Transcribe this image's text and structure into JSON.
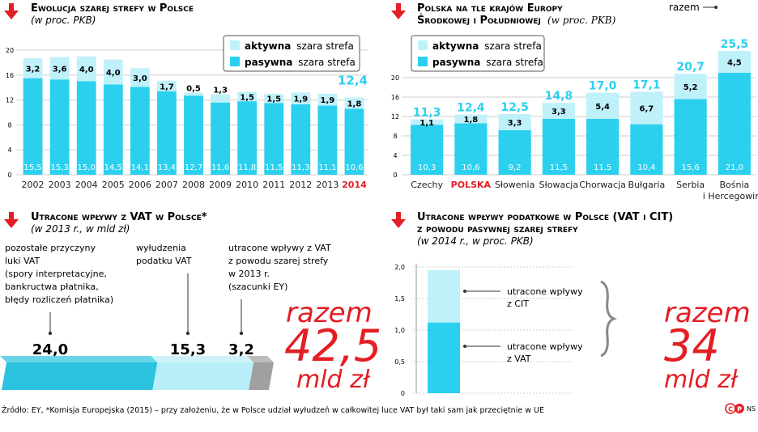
{
  "colors": {
    "aktywna": "#bff1fb",
    "pasywna": "#2bd0ef",
    "accent": "#e31e24",
    "grid": "#cfcfcf",
    "bigbar_dark": "#2bc3df",
    "bigbar_light": "#b8eef7",
    "bigbar_gray": "#a0a0a0"
  },
  "legend": {
    "aktywna_bold": "aktywna",
    "aktywna_rest": "szara strefa",
    "pasywna_bold": "pasywna",
    "pasywna_rest": "szara strefa"
  },
  "chart_data": [
    {
      "type": "bar",
      "title": "Ewolucja szarej strefy w Polsce",
      "subtitle": "(w proc. PKB)",
      "categories": [
        "2002",
        "2003",
        "2004",
        "2005",
        "2006",
        "2007",
        "2008",
        "2009",
        "2010",
        "2011",
        "2012",
        "2013",
        "2014"
      ],
      "highlight_category": "2014",
      "series": [
        {
          "name": "pasywna szara strefa",
          "values": [
            15.5,
            15.3,
            15.0,
            14.5,
            14.1,
            13.4,
            12.7,
            11.6,
            11.8,
            11.5,
            11.3,
            11.1,
            10.6
          ]
        },
        {
          "name": "aktywna szara strefa",
          "values": [
            3.2,
            3.6,
            4.0,
            4.0,
            3.0,
            1.7,
            0.5,
            1.3,
            1.5,
            1.5,
            1.9,
            1.9,
            1.8
          ]
        }
      ],
      "labels_pasywna": [
        "15,5",
        "15,3",
        "15,0",
        "14,5",
        "14,1",
        "13,4",
        "12,7",
        "11,6",
        "11,8",
        "11,5",
        "11,3",
        "11,1",
        "10,6"
      ],
      "labels_aktywna": [
        "3,2",
        "3,6",
        "4,0",
        "4,0",
        "3,0",
        "1,7",
        "0,5",
        "1,3",
        "1,5",
        "1,5",
        "1,9",
        "1,9",
        "1,8"
      ],
      "total_label": "12,4",
      "yticks": [
        0,
        4,
        8,
        12,
        16,
        20
      ],
      "ylim": [
        0,
        20
      ]
    },
    {
      "type": "bar",
      "title_line1": "Polska na tle krajów Europy",
      "title_line2": "Środkowej i Południowej",
      "subtitle": "(w proc. PKB)",
      "categories": [
        "Czechy",
        "POLSKA",
        "Słowenia",
        "Słowacja",
        "Chorwacja",
        "Bułgaria",
        "Serbia",
        "Bośnia i Hercegowina"
      ],
      "category_lines": [
        [
          "Czechy"
        ],
        [
          "POLSKA"
        ],
        [
          "Słowenia"
        ],
        [
          "Słowacja"
        ],
        [
          "Chorwacja"
        ],
        [
          "Bułgaria"
        ],
        [
          "Serbia"
        ],
        [
          "Bośnia",
          "i Hercegowina"
        ]
      ],
      "highlight_category": "POLSKA",
      "series": [
        {
          "name": "pasywna szara strefa",
          "values": [
            10.3,
            10.6,
            9.2,
            11.5,
            11.5,
            10.4,
            15.6,
            21.0
          ]
        },
        {
          "name": "aktywna szara strefa",
          "values": [
            1.1,
            1.8,
            3.3,
            3.3,
            5.4,
            6.7,
            5.2,
            4.5
          ]
        }
      ],
      "labels_pasywna": [
        "10,3",
        "10,6",
        "9,2",
        "11,5",
        "11,5",
        "10,4",
        "15,6",
        "21,0"
      ],
      "labels_aktywna": [
        "1,1",
        "1,8",
        "3,3",
        "3,3",
        "5,4",
        "6,7",
        "5,2",
        "4,5"
      ],
      "totals": [
        "11,3",
        "12,4",
        "12,5",
        "14,8",
        "17,0",
        "17,1",
        "20,7",
        "25,5"
      ],
      "razem_label": "razem",
      "yticks": [
        0,
        4,
        8,
        12,
        16,
        20
      ],
      "ylim": [
        0,
        26
      ]
    },
    {
      "type": "bar",
      "title": "Utracone wpływy z VAT w Polsce*",
      "subtitle": "(w 2013 r., w mld zł)",
      "segments": [
        {
          "value": 24.0,
          "label": "24,0",
          "annotation": [
            "pozostałe przyczyny",
            "luki VAT",
            "(spory interpretacyjne,",
            "bankructwa płatnika,",
            "błędy rozliczeń płatnika)"
          ]
        },
        {
          "value": 15.3,
          "label": "15,3",
          "annotation": [
            "wyłudzenia",
            "podatku VAT"
          ]
        },
        {
          "value": 3.2,
          "label": "3,2",
          "annotation": [
            "utracone wpływy z VAT",
            "z powodu szarej strefy",
            "w 2013 r.",
            "(szacunki EY)"
          ]
        }
      ],
      "total_word": "razem",
      "total_value": "42,5",
      "total_unit": "mld zł"
    },
    {
      "type": "bar",
      "title_line1": "Utracone wpływy podatkowe w Polsce (VAT i CIT)",
      "title_line2": "z powodu pasywnej szarej strefy",
      "subtitle": "(w 2014 r., w proc. PKB)",
      "series": [
        {
          "name": "utracone wpływy z VAT",
          "value": 1.12,
          "label_lines": [
            "utracone wpływy",
            "z VAT"
          ]
        },
        {
          "name": "utracone wpływy z CIT",
          "value": 0.83,
          "label_lines": [
            "utracone wpływy",
            "z CIT"
          ]
        }
      ],
      "yticks": [
        "0",
        "0,5",
        "1,0",
        "1,5",
        "2,0"
      ],
      "ylim": [
        0,
        2.0
      ],
      "total_word": "razem",
      "total_value": "34",
      "total_unit": "mld zł"
    }
  ],
  "footer": {
    "source": "Źródło: EY, *Komisja Europejska (2015) – przy założeniu, że w Polsce udział wyłudzeń w całkowitej luce VAT był taki sam jak przeciętnie w UE",
    "credit": "NS"
  }
}
